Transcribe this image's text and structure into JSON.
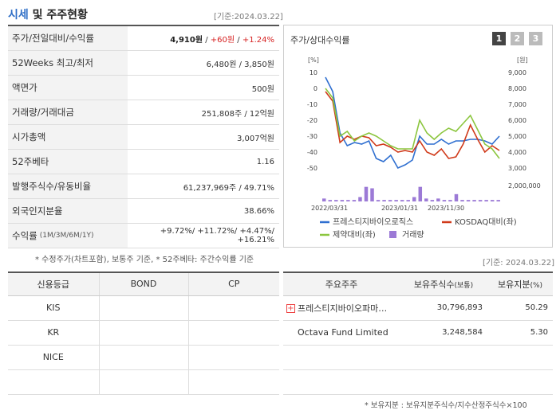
{
  "header": {
    "title_part1": "시세",
    "title_part2": " 및 주주현황",
    "date": "[기준:2024.03.22]"
  },
  "quote_rows": [
    {
      "label": "주가/전일대비/수익률",
      "value_parts": [
        "4,910원",
        " / ",
        "+60원",
        " / ",
        "+1.24%"
      ]
    },
    {
      "label": "52Weeks 최고/최저",
      "value": "6,480원 / 3,850원"
    },
    {
      "label": "액면가",
      "value": "500원"
    },
    {
      "label": "거래량/거래대금",
      "value": "251,808주 / 12억원"
    },
    {
      "label": "시가총액",
      "value": "3,007억원"
    },
    {
      "label": "52주베타",
      "value": "1.16"
    },
    {
      "label": "발행주식수/유동비율",
      "value": "61,237,969주 / 49.71%"
    },
    {
      "label": "외국인지분율",
      "value": "38.66%"
    },
    {
      "label": "수익률",
      "label_small": "(1M/3M/6M/1Y)",
      "value": "+9.72%/ +11.72%/ +4.47%/ +16.21%"
    }
  ],
  "quote_note": "* 수정주가(차트포함), 보통주 기준, * 52주베타: 주간수익률 기준",
  "chart_panel": {
    "title": "주가/상대수익률",
    "tabs": [
      "1",
      "2",
      "3"
    ],
    "left_unit": "[%]",
    "right_unit": "[원]",
    "volume_label": "2,000,000"
  },
  "chart_data": {
    "type": "line",
    "x_ticks": [
      "2022/03/31",
      "2023/01/31",
      "2023/11/30"
    ],
    "ylim_left": [
      -50,
      10
    ],
    "ylim_right": [
      3000,
      9000
    ],
    "y_ticks_left": [
      "10",
      "0",
      "-10",
      "-20",
      "-30",
      "-40",
      "-50"
    ],
    "y_ticks_right": [
      "9,000",
      "8,000",
      "7,000",
      "6,000",
      "5,000",
      "4,000",
      "3,000"
    ],
    "series": [
      {
        "name": "프레스티지바이오로직스",
        "color": "#2f6fd0",
        "values": [
          7,
          -2,
          -28,
          -36,
          -34,
          -35,
          -33,
          -44,
          -46,
          -42,
          -50,
          -48,
          -45,
          -30,
          -35,
          -35,
          -32,
          -35,
          -33,
          -33,
          -32,
          -32,
          -33,
          -35,
          -30
        ]
      },
      {
        "name": "KOSDAQ대비(좌)",
        "color": "#d03a1a",
        "values": [
          -2,
          -8,
          -34,
          -30,
          -32,
          -30,
          -31,
          -36,
          -35,
          -37,
          -40,
          -39,
          -40,
          -33,
          -40,
          -42,
          -38,
          -44,
          -43,
          -35,
          -23,
          -32,
          -40,
          -36,
          -39
        ]
      },
      {
        "name": "제약대비(좌)",
        "color": "#8cc63f",
        "values": [
          0,
          -6,
          -30,
          -27,
          -33,
          -30,
          -28,
          -30,
          -33,
          -36,
          -38,
          -38,
          -38,
          -20,
          -28,
          -32,
          -28,
          -25,
          -27,
          -22,
          -17,
          -26,
          -35,
          -38,
          -44
        ]
      }
    ],
    "volume": [
      2,
      1,
      1,
      1,
      1,
      1,
      3,
      10,
      9,
      1,
      1,
      1,
      1,
      1,
      1,
      3,
      10,
      2,
      1,
      2,
      1,
      1,
      5,
      1,
      1,
      1,
      1,
      1,
      1,
      1
    ],
    "volume_ylim": [
      0,
      12
    ],
    "volume_name": "거래량"
  },
  "holders_note": "[기준: 2024.03.22]",
  "credit_table": {
    "headers": [
      "신용등급",
      "BOND",
      "CP"
    ],
    "rows": [
      [
        "KIS",
        "",
        ""
      ],
      [
        "KR",
        "",
        ""
      ],
      [
        "NICE",
        "",
        ""
      ],
      [
        "",
        "",
        ""
      ]
    ]
  },
  "holder_table": {
    "headers": [
      "주요주주",
      "보유주식수",
      "(보통)",
      "보유지분",
      "(%)"
    ],
    "rows": [
      {
        "name": "프레스티지바이오파마…",
        "shares": "30,796,893",
        "pct": "50.29",
        "expand": "+"
      },
      {
        "name": "Octava Fund Limited",
        "shares": "3,248,584",
        "pct": "5.30"
      }
    ]
  },
  "holder_note": "* 보유지분 : 보유지분주식수/지수산정주식수×100"
}
